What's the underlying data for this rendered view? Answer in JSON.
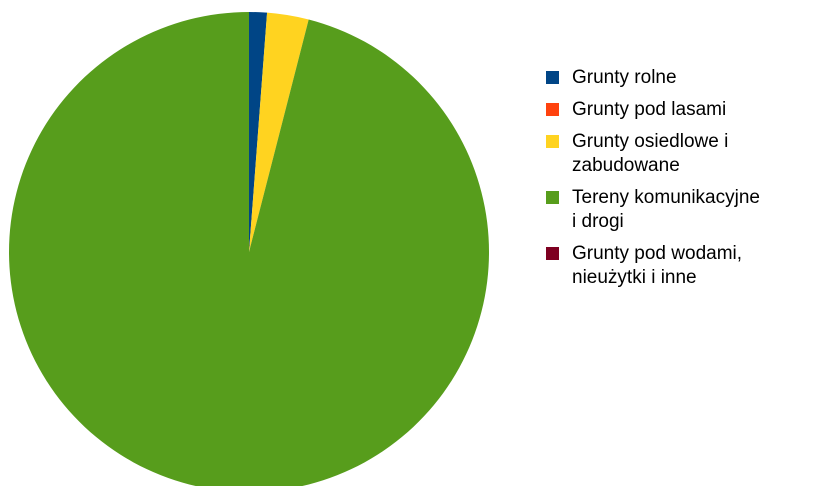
{
  "chart_data": {
    "type": "pie",
    "title": "",
    "start_angle_deg": 0,
    "direction": "clockwise",
    "slices": [
      {
        "label": "Grunty rolne",
        "value": 1.2,
        "color": "#004586"
      },
      {
        "label": "Grunty pod lasami",
        "value": 0.0,
        "color": "#ff420e"
      },
      {
        "label": "Grunty osiedlowe i\nzabudowane",
        "value": 2.8,
        "color": "#ffd320"
      },
      {
        "label": "Tereny komunikacyjne\ni drogi",
        "value": 96.0,
        "color": "#579d1c"
      },
      {
        "label": "Grunty pod wodami,\nnieużytki i inne",
        "value": 0.0,
        "color": "#7e0021"
      }
    ],
    "legend_position": "right"
  }
}
